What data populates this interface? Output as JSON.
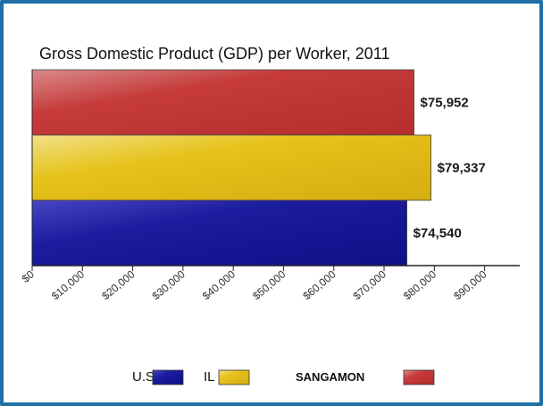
{
  "chart_data": {
    "type": "bar",
    "orientation": "horizontal",
    "title": "Gross Domestic Product (GDP) per Worker, 2011",
    "categories": [
      "SANGAMON",
      "IL",
      "U.S."
    ],
    "values": [
      75952,
      79337,
      74540
    ],
    "value_labels": [
      "$75,952",
      "$79,337",
      "$74,540"
    ],
    "colors": [
      "#c63a3a",
      "#e6c21a",
      "#1c1c9e"
    ],
    "xlim": [
      0,
      97000
    ],
    "x_ticks": [
      0,
      10000,
      20000,
      30000,
      40000,
      50000,
      60000,
      70000,
      80000,
      90000
    ],
    "x_tick_labels": [
      "$0",
      "$10,000",
      "$20,000",
      "$30,000",
      "$40,000",
      "$50,000",
      "$60,000",
      "$70,000",
      "$80,000",
      "$90,000"
    ],
    "grid": false,
    "legend_position": "bottom",
    "legend": [
      {
        "label": "U.S.",
        "color": "#1c1c9e"
      },
      {
        "label": "IL",
        "color": "#e6c21a"
      },
      {
        "label": "SANGAMON",
        "color": "#c63a3a"
      }
    ]
  }
}
